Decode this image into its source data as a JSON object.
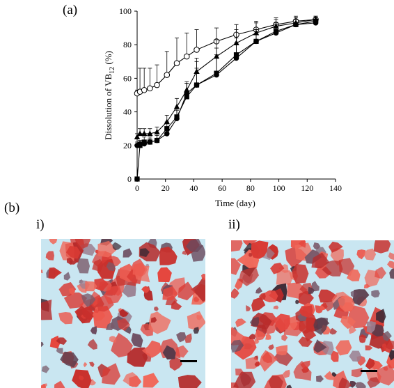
{
  "figure": {
    "panel_a_label": "(a)",
    "panel_b_label": "(b)",
    "sub_i_label": "i)",
    "sub_ii_label": "ii)"
  },
  "chart_data": {
    "type": "line",
    "xlabel": "Time (day)",
    "ylabel_main": "Dissolution of VB",
    "ylabel_sub": "12",
    "ylabel_tail": " (%)",
    "xlim": [
      0,
      140
    ],
    "ylim": [
      0,
      100
    ],
    "xticks": [
      0,
      20,
      40,
      60,
      80,
      100,
      120,
      140
    ],
    "yticks": [
      0,
      20,
      40,
      60,
      80,
      100
    ],
    "grid": false,
    "x": [
      0,
      2,
      5,
      9,
      14,
      21,
      28,
      35,
      42,
      56,
      70,
      84,
      98,
      112,
      126
    ],
    "series": [
      {
        "marker": "open-circle",
        "values": [
          51,
          52,
          53,
          54,
          56,
          62,
          69,
          73,
          77,
          82,
          86,
          89,
          92,
          94,
          95
        ],
        "errors": [
          2,
          14,
          13,
          12,
          12,
          14,
          15,
          14,
          12,
          8,
          6,
          5,
          4,
          3,
          2
        ]
      },
      {
        "marker": "filled-triangle",
        "values": [
          25,
          27,
          27,
          27,
          28,
          34,
          43,
          53,
          64,
          73,
          81,
          87,
          91,
          93,
          95
        ],
        "errors": [
          2,
          3,
          3,
          3,
          3,
          4,
          5,
          5,
          8,
          10,
          8,
          6,
          4,
          3,
          2
        ]
      },
      {
        "marker": "filled-square",
        "values": [
          0,
          20,
          22,
          22,
          23,
          30,
          37,
          49,
          56,
          63,
          74,
          82,
          88,
          92,
          94
        ],
        "errors": [
          0,
          2,
          3,
          3,
          4,
          4,
          5,
          8,
          14,
          15,
          10,
          7,
          5,
          3,
          2
        ]
      },
      {
        "marker": "filled-circle",
        "values": [
          20,
          21,
          21,
          22,
          23,
          27,
          36,
          51,
          56,
          62,
          72,
          82,
          87,
          92,
          93
        ],
        "errors": [
          2,
          2,
          2,
          2,
          3,
          4,
          5,
          6,
          10,
          12,
          9,
          7,
          5,
          3,
          2
        ]
      }
    ]
  }
}
